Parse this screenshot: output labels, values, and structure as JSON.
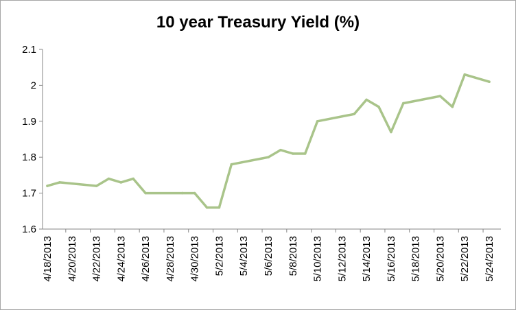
{
  "chart_data": {
    "type": "line",
    "title": "10 year Treasury Yield (%)",
    "xlabel": "",
    "ylabel": "",
    "ylim": [
      1.6,
      2.1
    ],
    "yticks": [
      "1.6",
      "1.7",
      "1.8",
      "1.9",
      "2",
      "2.1"
    ],
    "xticks": [
      "4/18/2013",
      "4/20/2013",
      "4/22/2013",
      "4/24/2013",
      "4/26/2013",
      "4/28/2013",
      "4/30/2013",
      "5/2/2013",
      "5/4/2013",
      "5/6/2013",
      "5/8/2013",
      "5/10/2013",
      "5/12/2013",
      "5/14/2013",
      "5/16/2013",
      "5/18/2013",
      "5/20/2013",
      "5/22/2013",
      "5/24/2013"
    ],
    "grid": false,
    "legend": "none",
    "line_color": "#a9c48a",
    "series": [
      {
        "x": [
          "4/18/2013",
          "4/19/2013",
          "4/22/2013",
          "4/23/2013",
          "4/24/2013",
          "4/25/2013",
          "4/26/2013",
          "4/29/2013",
          "4/30/2013",
          "5/1/2013",
          "5/2/2013",
          "5/3/2013",
          "5/6/2013",
          "5/7/2013",
          "5/8/2013",
          "5/9/2013",
          "5/10/2013",
          "5/13/2013",
          "5/14/2013",
          "5/15/2013",
          "5/16/2013",
          "5/17/2013",
          "5/20/2013",
          "5/21/2013",
          "5/22/2013",
          "5/24/2013"
        ],
        "values": [
          1.72,
          1.73,
          1.72,
          1.74,
          1.73,
          1.74,
          1.7,
          1.7,
          1.7,
          1.66,
          1.66,
          1.78,
          1.8,
          1.82,
          1.81,
          1.81,
          1.9,
          1.92,
          1.96,
          1.94,
          1.87,
          1.95,
          1.97,
          1.94,
          2.03,
          2.01
        ]
      }
    ]
  }
}
